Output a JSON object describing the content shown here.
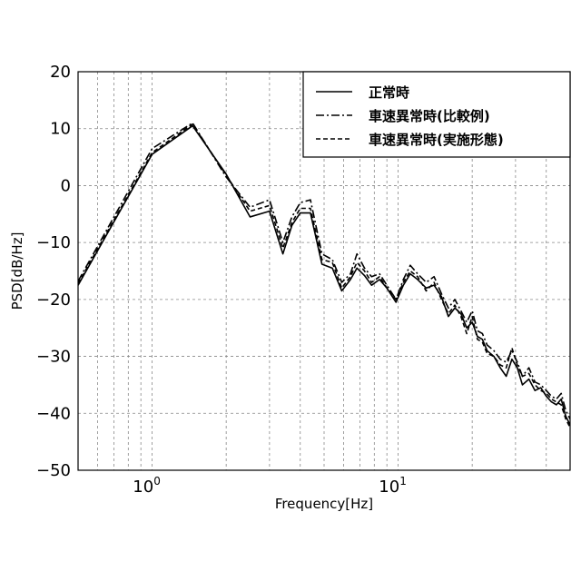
{
  "chart_data": {
    "type": "line",
    "xlabel": "Frequency[Hz]",
    "ylabel": "PSD[dB/Hz]",
    "x_scale": "log",
    "xlim": [
      0.5,
      50
    ],
    "ylim": [
      -50,
      20
    ],
    "yticks": [
      20,
      10,
      0,
      -10,
      -20,
      -30,
      -40,
      -50
    ],
    "ytick_labels": [
      "20",
      "10",
      "0",
      "−10",
      "−20",
      "−30",
      "−40",
      "−50"
    ],
    "xtick_major": [
      1,
      10
    ],
    "xtick_labels": [
      {
        "base": "10",
        "exp": "0"
      },
      {
        "base": "10",
        "exp": "1"
      }
    ],
    "grid": true,
    "legend_position": "top-right",
    "series": [
      {
        "name": "正常時",
        "style": "solid",
        "x": [
          0.5,
          1.0,
          1.46,
          2.0,
          2.5,
          3.0,
          3.4,
          3.7,
          4.0,
          4.4,
          4.9,
          5.4,
          5.9,
          6.4,
          6.8,
          7.3,
          7.8,
          8.4,
          9.0,
          9.8,
          10.5,
          11.2,
          12.0,
          13.0,
          14.0,
          15.0,
          16.0,
          17.0,
          18.0,
          19.0,
          20.0,
          21.0,
          22.0,
          23.0,
          24.5,
          26.0,
          27.5,
          29.0,
          30.5,
          32.0,
          34.0,
          36.0,
          38.0,
          40.0,
          42.0,
          44.0,
          46.0,
          48.0,
          50.0
        ],
        "y": [
          -17.5,
          5.5,
          10.5,
          2.0,
          -5.5,
          -4.5,
          -12.0,
          -7.0,
          -4.8,
          -4.8,
          -13.8,
          -14.5,
          -18.5,
          -16.5,
          -14.5,
          -15.8,
          -17.5,
          -16.5,
          -18.0,
          -20.5,
          -17.5,
          -15.5,
          -16.5,
          -18.0,
          -17.5,
          -19.5,
          -23.0,
          -21.5,
          -22.5,
          -25.0,
          -24.0,
          -26.5,
          -27.0,
          -29.0,
          -30.0,
          -32.0,
          -33.5,
          -30.5,
          -32.0,
          -35.0,
          -34.0,
          -36.0,
          -35.5,
          -37.0,
          -38.0,
          -38.5,
          -37.5,
          -40.5,
          -42.0
        ]
      },
      {
        "name": "車速異常時(比較例)",
        "style": "dashdot",
        "x": [
          0.5,
          1.0,
          1.46,
          2.0,
          2.5,
          3.0,
          3.4,
          3.7,
          4.0,
          4.4,
          4.9,
          5.4,
          5.9,
          6.4,
          6.8,
          7.3,
          7.8,
          8.4,
          9.0,
          9.8,
          10.5,
          11.2,
          12.0,
          13.0,
          14.0,
          15.0,
          16.0,
          17.0,
          18.0,
          19.0,
          20.0,
          21.0,
          22.0,
          23.0,
          24.5,
          26.0,
          27.5,
          29.0,
          30.5,
          32.0,
          34.0,
          36.0,
          38.0,
          40.0,
          42.0,
          44.0,
          46.0,
          48.0,
          50.0
        ],
        "y": [
          -16.8,
          6.5,
          11.0,
          1.5,
          -3.8,
          -2.5,
          -10.0,
          -5.5,
          -3.0,
          -2.5,
          -12.0,
          -13.0,
          -17.0,
          -15.5,
          -12.0,
          -14.5,
          -16.0,
          -15.5,
          -17.5,
          -20.0,
          -16.5,
          -14.0,
          -15.5,
          -17.0,
          -16.0,
          -19.0,
          -21.5,
          -20.0,
          -22.0,
          -24.0,
          -22.0,
          -25.5,
          -26.0,
          -28.0,
          -29.0,
          -30.5,
          -31.0,
          -29.0,
          -31.0,
          -33.5,
          -32.0,
          -34.5,
          -35.0,
          -36.0,
          -37.0,
          -37.5,
          -36.5,
          -39.5,
          -41.0
        ]
      },
      {
        "name": "車速異常時(実施形態)",
        "style": "dashed",
        "x": [
          0.5,
          1.0,
          1.46,
          2.0,
          2.5,
          3.0,
          3.4,
          3.7,
          4.0,
          4.4,
          4.9,
          5.4,
          5.9,
          6.4,
          6.8,
          7.3,
          7.8,
          8.4,
          9.0,
          9.8,
          10.5,
          11.2,
          12.0,
          13.0,
          14.0,
          15.0,
          16.0,
          17.0,
          18.0,
          19.0,
          20.0,
          21.0,
          22.0,
          23.0,
          24.5,
          26.0,
          27.5,
          29.0,
          30.5,
          32.0,
          34.0,
          36.0,
          38.0,
          40.0,
          42.0,
          44.0,
          46.0,
          48.0,
          50.0
        ],
        "y": [
          -17.2,
          5.8,
          10.8,
          1.8,
          -4.5,
          -3.5,
          -11.0,
          -6.5,
          -4.0,
          -4.0,
          -13.0,
          -13.5,
          -18.0,
          -16.0,
          -13.5,
          -15.0,
          -17.0,
          -16.0,
          -18.0,
          -20.0,
          -17.0,
          -15.0,
          -16.0,
          -18.5,
          -17.0,
          -20.0,
          -22.5,
          -21.0,
          -23.0,
          -26.0,
          -23.0,
          -27.0,
          -27.5,
          -29.5,
          -30.0,
          -31.5,
          -32.0,
          -28.5,
          -31.5,
          -33.5,
          -33.0,
          -35.0,
          -36.0,
          -36.5,
          -37.5,
          -38.0,
          -38.5,
          -41.0,
          -42.5
        ]
      }
    ]
  }
}
